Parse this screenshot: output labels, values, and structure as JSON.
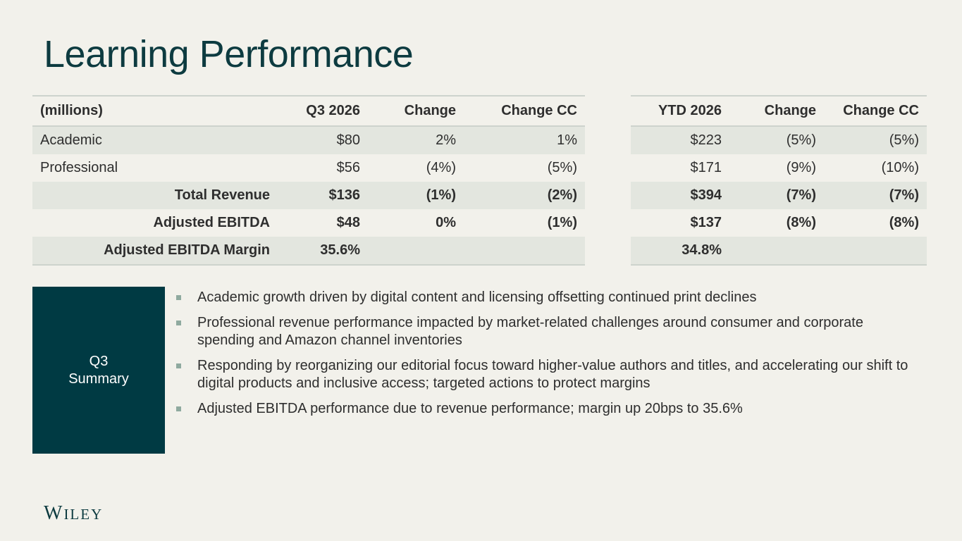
{
  "title": "Learning Performance",
  "q3_table": {
    "headers": [
      "(millions)",
      "Q3 2026",
      "Change",
      "Change CC"
    ],
    "rows": [
      {
        "label": "Academic",
        "value": "$80",
        "change": "2%",
        "change_cc": "1%"
      },
      {
        "label": "Professional",
        "value": "$56",
        "change": "(4%)",
        "change_cc": "(5%)"
      },
      {
        "label": "Total Revenue",
        "value": "$136",
        "change": "(1%)",
        "change_cc": "(2%)"
      },
      {
        "label": "Adjusted EBITDA",
        "value": "$48",
        "change": "0%",
        "change_cc": "(1%)"
      },
      {
        "label": "Adjusted EBITDA Margin",
        "value": "35.6%",
        "change": "",
        "change_cc": ""
      }
    ]
  },
  "ytd_table": {
    "headers": [
      "YTD 2026",
      "Change",
      "Change CC"
    ],
    "rows": [
      {
        "value": "$223",
        "change": "(5%)",
        "change_cc": "(5%)"
      },
      {
        "value": "$171",
        "change": "(9%)",
        "change_cc": "(10%)"
      },
      {
        "value": "$394",
        "change": "(7%)",
        "change_cc": "(7%)"
      },
      {
        "value": "$137",
        "change": "(8%)",
        "change_cc": "(8%)"
      },
      {
        "value": "34.8%",
        "change": "",
        "change_cc": ""
      }
    ]
  },
  "summary": {
    "line1": "Q3",
    "line2": "Summary",
    "bullets": [
      "Academic growth driven by digital content and licensing offsetting continued print declines",
      "Professional revenue performance impacted by market-related challenges around consumer and corporate spending and Amazon channel inventories",
      "Responding by reorganizing our editorial focus toward higher-value authors and titles, and accelerating our shift to digital products and inclusive access; targeted actions to protect margins",
      "Adjusted EBITDA performance due to revenue performance; margin up 20bps to 35.6%"
    ]
  },
  "logo": {
    "cap": "W",
    "rest": "ILEY"
  },
  "colors": {
    "background": "#f2f1eb",
    "title": "#0d3b40",
    "summary_box": "#003a43",
    "row_shade": "#e3e6df",
    "bullet": "#8faa9f"
  }
}
